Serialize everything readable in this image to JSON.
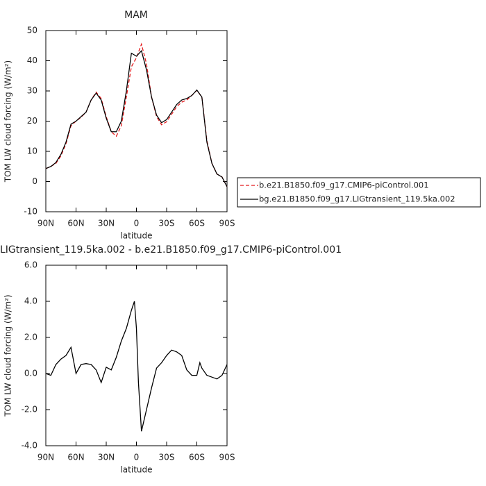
{
  "chart_data": [
    {
      "type": "line",
      "title": "MAM",
      "xlabel": "latitude",
      "ylabel": "TOM LW cloud forcing (W/m²)",
      "x": [
        90,
        85,
        80,
        75,
        70,
        65,
        60,
        55,
        50,
        45,
        40,
        35,
        30,
        25,
        20,
        15,
        10,
        5,
        0,
        -5,
        -10,
        -15,
        -20,
        -25,
        -30,
        -35,
        -40,
        -45,
        -50,
        -55,
        -60,
        -65,
        -70,
        -75,
        -80,
        -85,
        -90
      ],
      "series": [
        {
          "name": "b.e21.B1850.f09_g17.CMIP6-piControl.001",
          "color": "#e41a1c",
          "line_style": "dashed",
          "values": [
            4.3,
            5.0,
            6.0,
            8.5,
            12.5,
            18.5,
            20.0,
            21.3,
            23.0,
            27.0,
            29.6,
            27.5,
            21.5,
            16.5,
            15.0,
            18.5,
            28.0,
            38.0,
            41.0,
            45.5,
            39.0,
            28.0,
            21.5,
            18.8,
            19.8,
            22.3,
            24.8,
            26.3,
            27.0,
            28.5,
            30.2,
            28.0,
            13.5,
            6.0,
            2.5,
            1.5,
            -1.7
          ]
        },
        {
          "name": "bg.e21.B1850.f09_g17.LIGtransient_119.5ka.002",
          "color": "#000000",
          "line_style": "solid",
          "values": [
            4.3,
            5.0,
            6.3,
            9.0,
            13.0,
            19.0,
            20.0,
            21.5,
            23.0,
            27.0,
            29.3,
            27.0,
            21.0,
            16.5,
            16.5,
            20.0,
            30.0,
            42.5,
            41.5,
            43.3,
            37.0,
            28.0,
            22.0,
            19.5,
            20.5,
            23.0,
            25.5,
            27.0,
            27.5,
            28.5,
            30.3,
            28.0,
            13.0,
            6.0,
            2.5,
            1.5,
            -1.7
          ]
        }
      ],
      "xlim": [
        90,
        -90
      ],
      "xticks": [
        {
          "value": 90,
          "label": "90N"
        },
        {
          "value": 60,
          "label": "60N"
        },
        {
          "value": 30,
          "label": "30N"
        },
        0,
        {
          "value": -30,
          "label": "30S"
        },
        {
          "value": -60,
          "label": "60S"
        },
        {
          "value": -90,
          "label": "90S"
        }
      ],
      "ylim": [
        -10,
        50
      ],
      "yticks": [
        -10,
        0,
        10,
        20,
        30,
        40,
        50
      ],
      "legend": "right"
    },
    {
      "type": "line",
      "title": "LIGtransient_119.5ka.002 - b.e21.B1850.f09_g17.CMIP6-piControl.001",
      "xlabel": "latitude",
      "ylabel": "TOM LW cloud forcing (W/m²)",
      "x": [
        90,
        85,
        80,
        75,
        70,
        65,
        60,
        55,
        50,
        45,
        40,
        35,
        30,
        25,
        20,
        15,
        10,
        5,
        2,
        0,
        -2,
        -5,
        -10,
        -15,
        -20,
        -25,
        -30,
        -35,
        -40,
        -45,
        -50,
        -55,
        -60,
        -63,
        -65,
        -70,
        -75,
        -80,
        -85,
        -90
      ],
      "color": "#000000",
      "values": [
        0.0,
        -0.1,
        0.5,
        0.8,
        1.0,
        1.45,
        0.0,
        0.5,
        0.55,
        0.5,
        0.2,
        -0.5,
        0.35,
        0.2,
        0.9,
        1.8,
        2.5,
        3.5,
        4.0,
        2.5,
        -0.5,
        -3.2,
        -2.0,
        -0.8,
        0.3,
        0.6,
        1.0,
        1.3,
        1.2,
        1.0,
        0.2,
        -0.1,
        -0.1,
        0.6,
        0.3,
        -0.1,
        -0.2,
        -0.3,
        -0.1,
        0.5
      ],
      "xlim": [
        90,
        -90
      ],
      "xticks": [
        {
          "value": 90,
          "label": "90N"
        },
        {
          "value": 60,
          "label": "60N"
        },
        {
          "value": 30,
          "label": "30N"
        },
        0,
        {
          "value": -30,
          "label": "30S"
        },
        {
          "value": -60,
          "label": "60S"
        },
        {
          "value": -90,
          "label": "90S"
        }
      ],
      "ylim": [
        -4,
        6
      ],
      "yticks": [
        {
          "value": -4,
          "label": "-4.0"
        },
        {
          "value": -2,
          "label": "-2.0"
        },
        {
          "value": 0,
          "label": "0.0"
        },
        {
          "value": 2,
          "label": "2.0"
        },
        {
          "value": 4,
          "label": "4.0"
        },
        {
          "value": 6,
          "label": "6.0"
        }
      ]
    }
  ]
}
